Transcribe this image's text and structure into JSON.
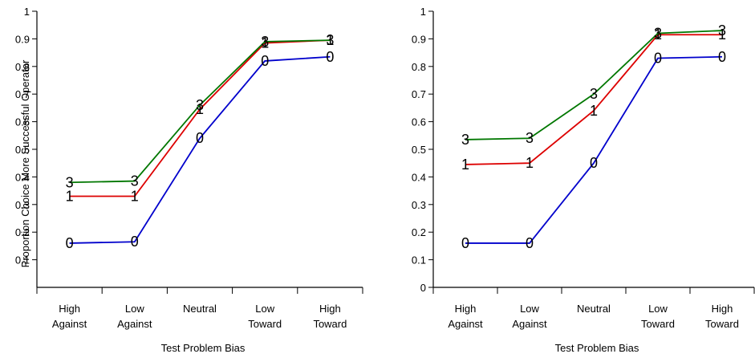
{
  "chart_data": [
    {
      "type": "line",
      "xlabel": "Test Problem Bias",
      "ylabel": "Proportion Choice More Successful Operator",
      "categories": [
        [
          "High",
          "Against"
        ],
        [
          "Low",
          "Against"
        ],
        [
          "Neutral"
        ],
        [
          "Low",
          "Toward"
        ],
        [
          "High",
          "Toward"
        ]
      ],
      "ylim": [
        0,
        1
      ],
      "yticks": [
        "0.1",
        "0.2",
        "0.3",
        "0.4",
        "0.5",
        "0.6",
        "0.7",
        "0.8",
        "0.9",
        "1"
      ],
      "series": [
        {
          "marker": "0",
          "color": "#0000cc",
          "values": [
            0.16,
            0.165,
            0.54,
            0.82,
            0.835
          ]
        },
        {
          "marker": "1",
          "color": "#dd0000",
          "values": [
            0.33,
            0.33,
            0.645,
            0.885,
            0.895
          ]
        },
        {
          "marker": "3",
          "color": "#007700",
          "values": [
            0.38,
            0.385,
            0.66,
            0.89,
            0.895
          ]
        }
      ]
    },
    {
      "type": "line",
      "xlabel": "Test Problem Bias",
      "ylabel": "",
      "categories": [
        [
          "High",
          "Against"
        ],
        [
          "Low",
          "Against"
        ],
        [
          "Neutral"
        ],
        [
          "Low",
          "Toward"
        ],
        [
          "High",
          "Toward"
        ]
      ],
      "ylim": [
        0,
        1
      ],
      "yticks": [
        "0",
        "0.1",
        "0.2",
        "0.3",
        "0.4",
        "0.5",
        "0.6",
        "0.7",
        "0.8",
        "0.9",
        "1"
      ],
      "series": [
        {
          "marker": "0",
          "color": "#0000cc",
          "values": [
            0.16,
            0.16,
            0.45,
            0.83,
            0.835
          ]
        },
        {
          "marker": "1",
          "color": "#dd0000",
          "values": [
            0.445,
            0.45,
            0.64,
            0.915,
            0.915
          ]
        },
        {
          "marker": "3",
          "color": "#007700",
          "values": [
            0.535,
            0.54,
            0.7,
            0.92,
            0.93
          ]
        }
      ]
    }
  ]
}
